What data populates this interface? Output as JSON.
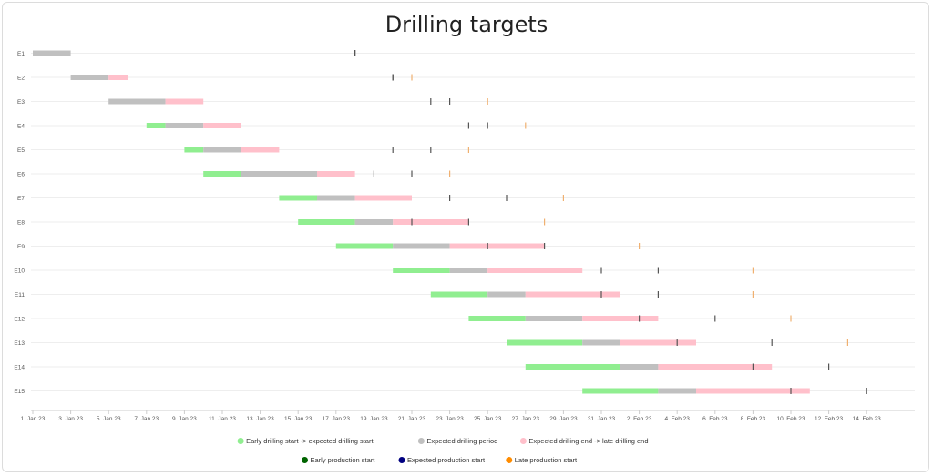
{
  "chart_data": {
    "type": "gantt",
    "title": "Drilling targets",
    "date_axis": {
      "range": [
        "2023-01-01",
        "2023-02-16"
      ],
      "tick_dates": [
        "2023-01-01",
        "2023-01-03",
        "2023-01-05",
        "2023-01-07",
        "2023-01-09",
        "2023-01-11",
        "2023-01-13",
        "2023-01-15",
        "2023-01-17",
        "2023-01-19",
        "2023-01-21",
        "2023-01-23",
        "2023-01-25",
        "2023-01-27",
        "2023-01-29",
        "2023-01-31",
        "2023-02-02",
        "2023-02-04",
        "2023-02-06",
        "2023-02-08",
        "2023-02-10",
        "2023-02-12",
        "2023-02-14"
      ],
      "tick_labels": [
        "1. Jan 23",
        "3. Jan 23",
        "5. Jan 23",
        "7. Jan 23",
        "9. Jan 23",
        "11. Jan 23",
        "13. Jan 23",
        "15. Jan 23",
        "17. Jan 23",
        "19. Jan 23",
        "21. Jan 23",
        "23. Jan 23",
        "25. Jan 23",
        "27. Jan 23",
        "29. Jan 23",
        "31. Jan 23",
        "2. Feb 23",
        "4. Feb 23",
        "6. Feb 23",
        "8. Feb 23",
        "10. Feb 23",
        "12. Feb 23",
        "14. Feb 23"
      ]
    },
    "colors": {
      "early": "#90ee90",
      "expected": "#c0c0c0",
      "late": "#ffc0cb",
      "early_production": "#006400",
      "expected_production": "#000080",
      "late_production": "#ff8c00"
    },
    "legend": {
      "placement": "bottom",
      "row1": [
        {
          "label": "Early drilling start -> expected drilling start",
          "color": "#90ee90"
        },
        {
          "label": "Expected drilling period",
          "color": "#c0c0c0"
        },
        {
          "label": "Expected drilling end -> late drilling end",
          "color": "#ffc0cb"
        }
      ],
      "row2": [
        {
          "label": "Early production start",
          "color": "#006400"
        },
        {
          "label": "Expected production start",
          "color": "#000080"
        },
        {
          "label": "Late production start",
          "color": "#ff8c00"
        }
      ]
    },
    "grid": true,
    "rows": [
      {
        "name": "E1",
        "early_start": "2023-01-01",
        "expected_start": "2023-01-01",
        "expected_end": "2023-01-03",
        "late_end": "2023-01-03",
        "early_prod": "2023-01-18",
        "expected_prod": "2023-01-18",
        "late_prod": null
      },
      {
        "name": "E2",
        "early_start": "2023-01-03",
        "expected_start": "2023-01-03",
        "expected_end": "2023-01-05",
        "late_end": "2023-01-06",
        "early_prod": "2023-01-20",
        "expected_prod": "2023-01-20",
        "late_prod": "2023-01-21"
      },
      {
        "name": "E3",
        "early_start": "2023-01-05",
        "expected_start": "2023-01-05",
        "expected_end": "2023-01-08",
        "late_end": "2023-01-10",
        "early_prod": "2023-01-22",
        "expected_prod": "2023-01-23",
        "late_prod": "2023-01-25"
      },
      {
        "name": "E4",
        "early_start": "2023-01-07",
        "expected_start": "2023-01-08",
        "expected_end": "2023-01-10",
        "late_end": "2023-01-12",
        "early_prod": "2023-01-24",
        "expected_prod": "2023-01-25",
        "late_prod": "2023-01-27"
      },
      {
        "name": "E5",
        "early_start": "2023-01-09",
        "expected_start": "2023-01-10",
        "expected_end": "2023-01-12",
        "late_end": "2023-01-14",
        "early_prod": "2023-01-20",
        "expected_prod": "2023-01-22",
        "late_prod": "2023-01-24"
      },
      {
        "name": "E6",
        "early_start": "2023-01-10",
        "expected_start": "2023-01-12",
        "expected_end": "2023-01-16",
        "late_end": "2023-01-18",
        "early_prod": "2023-01-19",
        "expected_prod": "2023-01-21",
        "late_prod": "2023-01-23"
      },
      {
        "name": "E7",
        "early_start": "2023-01-14",
        "expected_start": "2023-01-16",
        "expected_end": "2023-01-18",
        "late_end": "2023-01-21",
        "early_prod": "2023-01-23",
        "expected_prod": "2023-01-26",
        "late_prod": "2023-01-29"
      },
      {
        "name": "E8",
        "early_start": "2023-01-15",
        "expected_start": "2023-01-18",
        "expected_end": "2023-01-20",
        "late_end": "2023-01-24",
        "early_prod": "2023-01-21",
        "expected_prod": "2023-01-24",
        "late_prod": "2023-01-28"
      },
      {
        "name": "E9",
        "early_start": "2023-01-17",
        "expected_start": "2023-01-20",
        "expected_end": "2023-01-23",
        "late_end": "2023-01-28",
        "early_prod": "2023-01-25",
        "expected_prod": "2023-01-28",
        "late_prod": "2023-02-02"
      },
      {
        "name": "E10",
        "early_start": "2023-01-20",
        "expected_start": "2023-01-23",
        "expected_end": "2023-01-25",
        "late_end": "2023-01-30",
        "early_prod": "2023-01-31",
        "expected_prod": "2023-02-03",
        "late_prod": "2023-02-08"
      },
      {
        "name": "E11",
        "early_start": "2023-01-22",
        "expected_start": "2023-01-25",
        "expected_end": "2023-01-27",
        "late_end": "2023-02-01",
        "early_prod": "2023-01-31",
        "expected_prod": "2023-02-03",
        "late_prod": "2023-02-08"
      },
      {
        "name": "E12",
        "early_start": "2023-01-24",
        "expected_start": "2023-01-27",
        "expected_end": "2023-01-30",
        "late_end": "2023-02-03",
        "early_prod": "2023-02-02",
        "expected_prod": "2023-02-06",
        "late_prod": "2023-02-10"
      },
      {
        "name": "E13",
        "early_start": "2023-01-26",
        "expected_start": "2023-01-30",
        "expected_end": "2023-02-01",
        "late_end": "2023-02-05",
        "early_prod": "2023-02-04",
        "expected_prod": "2023-02-09",
        "late_prod": "2023-02-13"
      },
      {
        "name": "E14",
        "early_start": "2023-01-27",
        "expected_start": "2023-02-01",
        "expected_end": "2023-02-03",
        "late_end": "2023-02-09",
        "early_prod": "2023-02-08",
        "expected_prod": "2023-02-12",
        "late_prod": null
      },
      {
        "name": "E15",
        "early_start": "2023-01-30",
        "expected_start": "2023-02-03",
        "expected_end": "2023-02-05",
        "late_end": "2023-02-11",
        "early_prod": "2023-02-10",
        "expected_prod": "2023-02-14",
        "late_prod": null
      }
    ]
  }
}
